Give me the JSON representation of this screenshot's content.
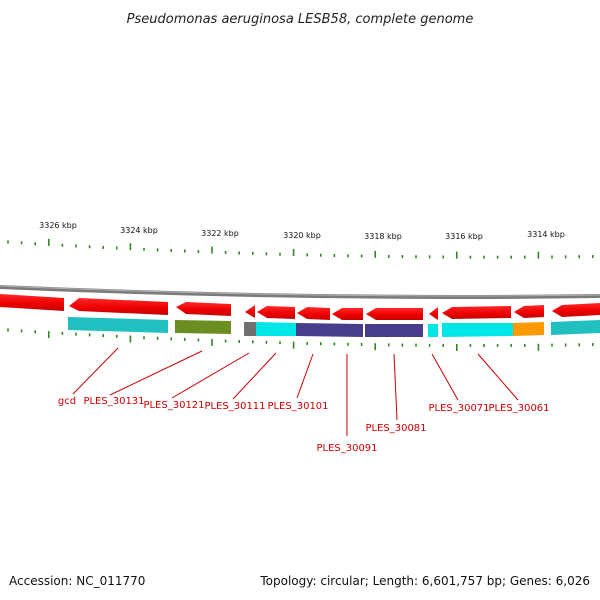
{
  "title": "Pseudomonas aeruginosa LESB58, complete genome",
  "accession": "Accession: NC_011770",
  "summary": "Topology: circular; Length: 6,601,757 bp; Genes: 6,026",
  "kbp_labels": [
    "3326 kbp",
    "3324 kbp",
    "3322 kbp",
    "3320 kbp",
    "3318 kbp",
    "3316 kbp",
    "3314 kbp"
  ],
  "genes": [
    {
      "name": "gcd"
    },
    {
      "name": "PLES_30131"
    },
    {
      "name": "PLES_30121"
    },
    {
      "name": "PLES_30111"
    },
    {
      "name": "PLES_30101"
    },
    {
      "name": "PLES_30091"
    },
    {
      "name": "PLES_30081"
    },
    {
      "name": "PLES_30071"
    },
    {
      "name": "PLES_30061"
    }
  ],
  "colors": {
    "cds": "#ff0000",
    "backbone": "#808080",
    "tick": "#2e8b22",
    "label": "#cc0000",
    "cog_cyan": "#00e5e5",
    "cog_teal": "#20c0c0",
    "cog_olive": "#6b8e23",
    "cog_navy": "#483d8b",
    "cog_orange": "#ff9900",
    "cog_gray": "#707070"
  }
}
